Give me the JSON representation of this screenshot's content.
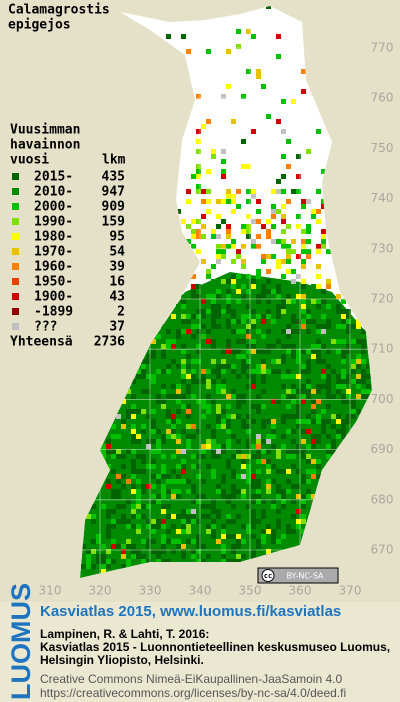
{
  "title": [
    "Calamagrostis",
    "epigejos"
  ],
  "legend": {
    "heading": [
      "Vuusimman",
      "havainnon",
      "vuosi"
    ],
    "count_heading": "lkm",
    "items": [
      {
        "label": "2015-",
        "count": 435,
        "color": "#006400"
      },
      {
        "label": "2010-",
        "count": 947,
        "color": "#008a00"
      },
      {
        "label": "2000-",
        "count": 909,
        "color": "#00c000"
      },
      {
        "label": "1990-",
        "count": 159,
        "color": "#80e000"
      },
      {
        "label": "1980-",
        "count": 95,
        "color": "#ffff00"
      },
      {
        "label": "1970-",
        "count": 54,
        "color": "#e8c000"
      },
      {
        "label": "1960-",
        "count": 39,
        "color": "#ff8000"
      },
      {
        "label": "1950-",
        "count": 16,
        "color": "#f04000"
      },
      {
        "label": "1900-",
        "count": 43,
        "color": "#d00000"
      },
      {
        "label": "-1899",
        "count": 2,
        "color": "#900000"
      },
      {
        "label": "???",
        "count": 37,
        "color": "#c0c0c0"
      }
    ],
    "total_label": "Yhteensä",
    "total": 2736
  },
  "map": {
    "xticks": [
      310,
      320,
      330,
      340,
      350,
      360,
      370
    ],
    "yticks": [
      670,
      680,
      690,
      700,
      710,
      720,
      730,
      740,
      750,
      760,
      770
    ]
  },
  "cc_badge": "BY-NC-SA",
  "footer": {
    "logo": "LUOMUS",
    "headline": "Kasviatlas 2015, www.luomus.fi/kasviatlas",
    "citation": [
      "Lampinen, R. & Lahti, T. 2016:",
      "Kasviatlas 2015 - Luonnontieteellinen keskusmuseo Luomus,",
      "Helsingin Yliopisto, Helsinki."
    ],
    "license": [
      "Creative Commons Nimeä-EiKaupallinen-JaaSamoin 4.0",
      "https://creativecommons.org/licenses/by-nc-sa/4.0/deed.fi"
    ]
  }
}
